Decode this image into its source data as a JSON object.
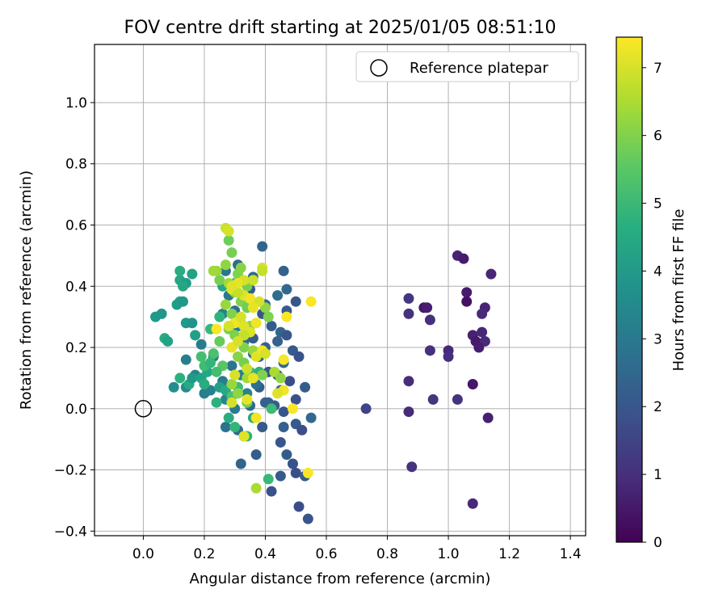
{
  "chart_data": {
    "type": "scatter",
    "title": "FOV centre drift starting at 2025/01/05 08:51:10",
    "xlabel": "Angular distance from reference (arcmin)",
    "ylabel": "Rotation from reference (arcmin)",
    "xlim": [
      -0.16,
      1.45
    ],
    "ylim": [
      -0.415,
      1.19
    ],
    "xticks": [
      "0.0",
      "0.2",
      "0.4",
      "0.6",
      "0.8",
      "1.0",
      "1.2",
      "1.4"
    ],
    "yticks": [
      "−0.4",
      "−0.2",
      "0.0",
      "0.2",
      "0.4",
      "0.6",
      "0.8",
      "1.0"
    ],
    "grid": true,
    "legend": {
      "position": "upper-right",
      "entries": [
        "Reference platepar"
      ]
    },
    "reference_point": {
      "label": "Reference platepar",
      "x": 0.0,
      "y": 0.0
    },
    "colorbar": {
      "label": "Hours from first FF file",
      "min": 0,
      "max": 7.45,
      "ticks": [
        "0",
        "1",
        "2",
        "3",
        "4",
        "5",
        "6",
        "7"
      ],
      "colormap": "viridis"
    },
    "points": [
      [
        1.03,
        0.5,
        0.75
      ],
      [
        1.05,
        0.49,
        0.55
      ],
      [
        1.14,
        0.44,
        0.8
      ],
      [
        1.06,
        0.38,
        0.55
      ],
      [
        1.06,
        0.35,
        0.35
      ],
      [
        1.12,
        0.33,
        0.75
      ],
      [
        1.11,
        0.31,
        0.9
      ],
      [
        0.87,
        0.36,
        1.2
      ],
      [
        0.87,
        0.31,
        1.1
      ],
      [
        0.92,
        0.33,
        0.4
      ],
      [
        0.93,
        0.33,
        0.6
      ],
      [
        0.94,
        0.29,
        1.0
      ],
      [
        1.08,
        0.24,
        0.7
      ],
      [
        1.11,
        0.25,
        0.8
      ],
      [
        1.09,
        0.22,
        0.5
      ],
      [
        1.12,
        0.22,
        0.9
      ],
      [
        0.94,
        0.19,
        1.05
      ],
      [
        1.0,
        0.19,
        0.85
      ],
      [
        1.0,
        0.17,
        1.0
      ],
      [
        1.1,
        0.2,
        0.6
      ],
      [
        0.87,
        0.09,
        0.95
      ],
      [
        1.08,
        0.08,
        0.45
      ],
      [
        0.95,
        0.03,
        1.2
      ],
      [
        1.03,
        0.03,
        1.1
      ],
      [
        0.87,
        -0.01,
        0.9
      ],
      [
        1.13,
        -0.03,
        0.65
      ],
      [
        0.73,
        0.0,
        1.5
      ],
      [
        0.88,
        -0.19,
        1.1
      ],
      [
        1.08,
        -0.31,
        0.85
      ],
      [
        0.39,
        0.53,
        2.4
      ],
      [
        0.46,
        0.45,
        2.3
      ],
      [
        0.47,
        0.39,
        2.5
      ],
      [
        0.44,
        0.37,
        2.6
      ],
      [
        0.5,
        0.35,
        2.0
      ],
      [
        0.47,
        0.32,
        2.2
      ],
      [
        0.45,
        0.25,
        2.4
      ],
      [
        0.47,
        0.24,
        2.0
      ],
      [
        0.44,
        0.22,
        2.3
      ],
      [
        0.49,
        0.19,
        2.1
      ],
      [
        0.51,
        0.17,
        1.9
      ],
      [
        0.46,
        0.15,
        2.5
      ],
      [
        0.44,
        0.11,
        2.1
      ],
      [
        0.48,
        0.09,
        1.8
      ],
      [
        0.53,
        0.07,
        2.2
      ],
      [
        0.45,
        0.06,
        2.4
      ],
      [
        0.5,
        0.03,
        1.9
      ],
      [
        0.43,
        0.01,
        2.2
      ],
      [
        0.46,
        -0.01,
        2.0
      ],
      [
        0.41,
        0.02,
        2.3
      ],
      [
        0.55,
        -0.03,
        2.5
      ],
      [
        0.5,
        -0.05,
        2.1
      ],
      [
        0.52,
        -0.07,
        1.8
      ],
      [
        0.46,
        -0.06,
        2.3
      ],
      [
        0.45,
        -0.11,
        2.0
      ],
      [
        0.47,
        -0.15,
        2.2
      ],
      [
        0.49,
        -0.18,
        1.9
      ],
      [
        0.5,
        -0.21,
        1.8
      ],
      [
        0.53,
        -0.22,
        2.2
      ],
      [
        0.45,
        -0.22,
        2.1
      ],
      [
        0.42,
        -0.27,
        1.9
      ],
      [
        0.51,
        -0.32,
        1.8
      ],
      [
        0.54,
        -0.36,
        2.0
      ],
      [
        0.37,
        -0.15,
        2.2
      ],
      [
        0.32,
        -0.18,
        2.4
      ],
      [
        0.33,
        -0.09,
        2.3
      ],
      [
        0.31,
        -0.07,
        2.5
      ],
      [
        0.27,
        -0.06,
        2.8
      ],
      [
        0.39,
        -0.06,
        2.1
      ],
      [
        0.35,
        0.01,
        2.6
      ],
      [
        0.4,
        0.02,
        2.3
      ],
      [
        0.38,
        0.07,
        2.2
      ],
      [
        0.41,
        0.12,
        2.0
      ],
      [
        0.38,
        0.17,
        2.4
      ],
      [
        0.4,
        0.2,
        2.3
      ],
      [
        0.36,
        0.23,
        2.1
      ],
      [
        0.42,
        0.27,
        2.2
      ],
      [
        0.39,
        0.31,
        2.0
      ],
      [
        0.4,
        0.34,
        2.4
      ],
      [
        0.35,
        0.39,
        2.2
      ],
      [
        0.31,
        0.47,
        2.6
      ],
      [
        0.36,
        0.43,
        2.5
      ],
      [
        0.28,
        0.37,
        3.0
      ],
      [
        0.3,
        0.32,
        2.7
      ],
      [
        0.31,
        0.27,
        2.9
      ],
      [
        0.33,
        0.22,
        2.6
      ],
      [
        0.36,
        0.18,
        2.4
      ],
      [
        0.34,
        0.12,
        2.6
      ],
      [
        0.37,
        0.08,
        2.7
      ],
      [
        0.27,
        0.45,
        2.9
      ],
      [
        0.26,
        0.31,
        3.3
      ],
      [
        0.19,
        0.21,
        3.1
      ],
      [
        0.23,
        0.17,
        3.0
      ],
      [
        0.29,
        0.14,
        2.9
      ],
      [
        0.32,
        0.11,
        3.2
      ],
      [
        0.26,
        0.09,
        3.1
      ],
      [
        0.22,
        0.06,
        3.3
      ],
      [
        0.14,
        0.16,
        3.2
      ],
      [
        0.17,
        0.11,
        3.4
      ],
      [
        0.2,
        0.05,
        3.2
      ],
      [
        0.27,
        0.03,
        3.4
      ],
      [
        0.34,
        0.05,
        3.3
      ],
      [
        0.3,
        0.0,
        3.1
      ],
      [
        0.16,
        0.44,
        4.3
      ],
      [
        0.12,
        0.42,
        4.4
      ],
      [
        0.14,
        0.41,
        4.1
      ],
      [
        0.12,
        0.35,
        4.2
      ],
      [
        0.11,
        0.34,
        4.1
      ],
      [
        0.13,
        0.35,
        4.0
      ],
      [
        0.06,
        0.31,
        3.9
      ],
      [
        0.04,
        0.3,
        4.0
      ],
      [
        0.14,
        0.28,
        4.0
      ],
      [
        0.16,
        0.28,
        3.8
      ],
      [
        0.17,
        0.24,
        4.2
      ],
      [
        0.07,
        0.23,
        4.5
      ],
      [
        0.08,
        0.22,
        4.3
      ],
      [
        0.1,
        0.07,
        3.7
      ],
      [
        0.14,
        0.07,
        3.6
      ],
      [
        0.15,
        0.08,
        4.5
      ],
      [
        0.12,
        0.1,
        4.7
      ],
      [
        0.16,
        0.1,
        4.0
      ],
      [
        0.19,
        0.1,
        4.3
      ],
      [
        0.21,
        0.12,
        4.4
      ],
      [
        0.2,
        0.08,
        4.6
      ],
      [
        0.25,
        0.07,
        4.2
      ],
      [
        0.27,
        0.06,
        4.5
      ],
      [
        0.24,
        0.02,
        4.7
      ],
      [
        0.28,
        -0.03,
        4.6
      ],
      [
        0.3,
        -0.06,
        4.9
      ],
      [
        0.34,
        -0.09,
        4.8
      ],
      [
        0.36,
        -0.03,
        4.5
      ],
      [
        0.26,
        0.4,
        4.4
      ],
      [
        0.25,
        0.3,
        4.8
      ],
      [
        0.22,
        0.26,
        5.0
      ],
      [
        0.23,
        0.18,
        5.3
      ],
      [
        0.19,
        0.17,
        5.2
      ],
      [
        0.2,
        0.14,
        5.1
      ],
      [
        0.26,
        0.14,
        5.5
      ],
      [
        0.24,
        0.12,
        5.2
      ],
      [
        0.22,
        0.15,
        4.9
      ],
      [
        0.35,
        0.12,
        5.0
      ],
      [
        0.38,
        0.12,
        4.8
      ],
      [
        0.31,
        0.07,
        5.1
      ],
      [
        0.29,
        0.04,
        5.3
      ],
      [
        0.42,
        0.0,
        5.1
      ],
      [
        0.41,
        -0.23,
        5.0
      ],
      [
        0.3,
        0.41,
        4.9
      ],
      [
        0.12,
        0.45,
        4.6
      ],
      [
        0.13,
        0.4,
        4.4
      ],
      [
        0.28,
        0.55,
        5.8
      ],
      [
        0.29,
        0.51,
        5.9
      ],
      [
        0.31,
        0.44,
        6.0
      ],
      [
        0.27,
        0.47,
        6.2
      ],
      [
        0.25,
        0.42,
        5.9
      ],
      [
        0.28,
        0.41,
        6.4
      ],
      [
        0.32,
        0.46,
        6.1
      ],
      [
        0.34,
        0.4,
        5.9
      ],
      [
        0.3,
        0.38,
        6.2
      ],
      [
        0.32,
        0.35,
        6.0
      ],
      [
        0.27,
        0.34,
        6.3
      ],
      [
        0.34,
        0.33,
        5.8
      ],
      [
        0.36,
        0.34,
        6.1
      ],
      [
        0.29,
        0.31,
        6.0
      ],
      [
        0.32,
        0.28,
        6.2
      ],
      [
        0.35,
        0.27,
        6.1
      ],
      [
        0.3,
        0.24,
        6.0
      ],
      [
        0.28,
        0.26,
        5.9
      ],
      [
        0.25,
        0.22,
        5.7
      ],
      [
        0.33,
        0.2,
        6.0
      ],
      [
        0.36,
        0.19,
        6.3
      ],
      [
        0.31,
        0.17,
        6.1
      ],
      [
        0.33,
        0.15,
        5.9
      ],
      [
        0.34,
        0.1,
        6.4
      ],
      [
        0.29,
        0.08,
        6.3
      ],
      [
        0.31,
        0.05,
        6.2
      ],
      [
        0.34,
        0.02,
        5.9
      ],
      [
        0.4,
        0.33,
        6.2
      ],
      [
        0.43,
        0.12,
        6.5
      ],
      [
        0.45,
        0.1,
        6.2
      ],
      [
        0.37,
        -0.26,
        6.5
      ],
      [
        0.41,
        0.3,
        6.0
      ],
      [
        0.24,
        0.45,
        6.3
      ],
      [
        0.23,
        0.45,
        6.4
      ],
      [
        0.39,
        0.11,
        6.0
      ],
      [
        0.27,
        0.59,
        6.9
      ],
      [
        0.28,
        0.58,
        7.0
      ],
      [
        0.39,
        0.46,
        7.0
      ],
      [
        0.39,
        0.45,
        6.8
      ],
      [
        0.33,
        0.42,
        7.0
      ],
      [
        0.36,
        0.42,
        6.9
      ],
      [
        0.33,
        0.37,
        7.1
      ],
      [
        0.29,
        0.39,
        7.2
      ],
      [
        0.31,
        0.38,
        6.8
      ],
      [
        0.35,
        0.36,
        7.3
      ],
      [
        0.38,
        0.35,
        7.0
      ],
      [
        0.36,
        0.33,
        7.2
      ],
      [
        0.3,
        0.28,
        7.3
      ],
      [
        0.28,
        0.27,
        7.0
      ],
      [
        0.33,
        0.27,
        7.1
      ],
      [
        0.37,
        0.28,
        7.3
      ],
      [
        0.35,
        0.25,
        7.1
      ],
      [
        0.24,
        0.26,
        7.4
      ],
      [
        0.29,
        0.2,
        7.2
      ],
      [
        0.33,
        0.24,
        6.8
      ],
      [
        0.31,
        0.22,
        7.0
      ],
      [
        0.37,
        0.17,
        7.1
      ],
      [
        0.39,
        0.19,
        7.3
      ],
      [
        0.4,
        0.18,
        7.0
      ],
      [
        0.46,
        0.16,
        7.4
      ],
      [
        0.34,
        0.13,
        6.9
      ],
      [
        0.36,
        0.1,
        7.2
      ],
      [
        0.3,
        0.11,
        7.0
      ],
      [
        0.37,
        -0.03,
        7.3
      ],
      [
        0.34,
        0.03,
        7.2
      ],
      [
        0.33,
        -0.09,
        7.1
      ],
      [
        0.29,
        0.02,
        7.0
      ],
      [
        0.46,
        0.06,
        7.3
      ],
      [
        0.44,
        0.05,
        7.1
      ],
      [
        0.49,
        0.0,
        7.4
      ],
      [
        0.47,
        0.3,
        7.4
      ],
      [
        0.55,
        0.35,
        7.4
      ],
      [
        0.54,
        -0.21,
        7.4
      ],
      [
        0.32,
        0.3,
        7.0
      ],
      [
        0.31,
        0.41,
        7.2
      ],
      [
        0.29,
        0.4,
        7.1
      ]
    ]
  }
}
